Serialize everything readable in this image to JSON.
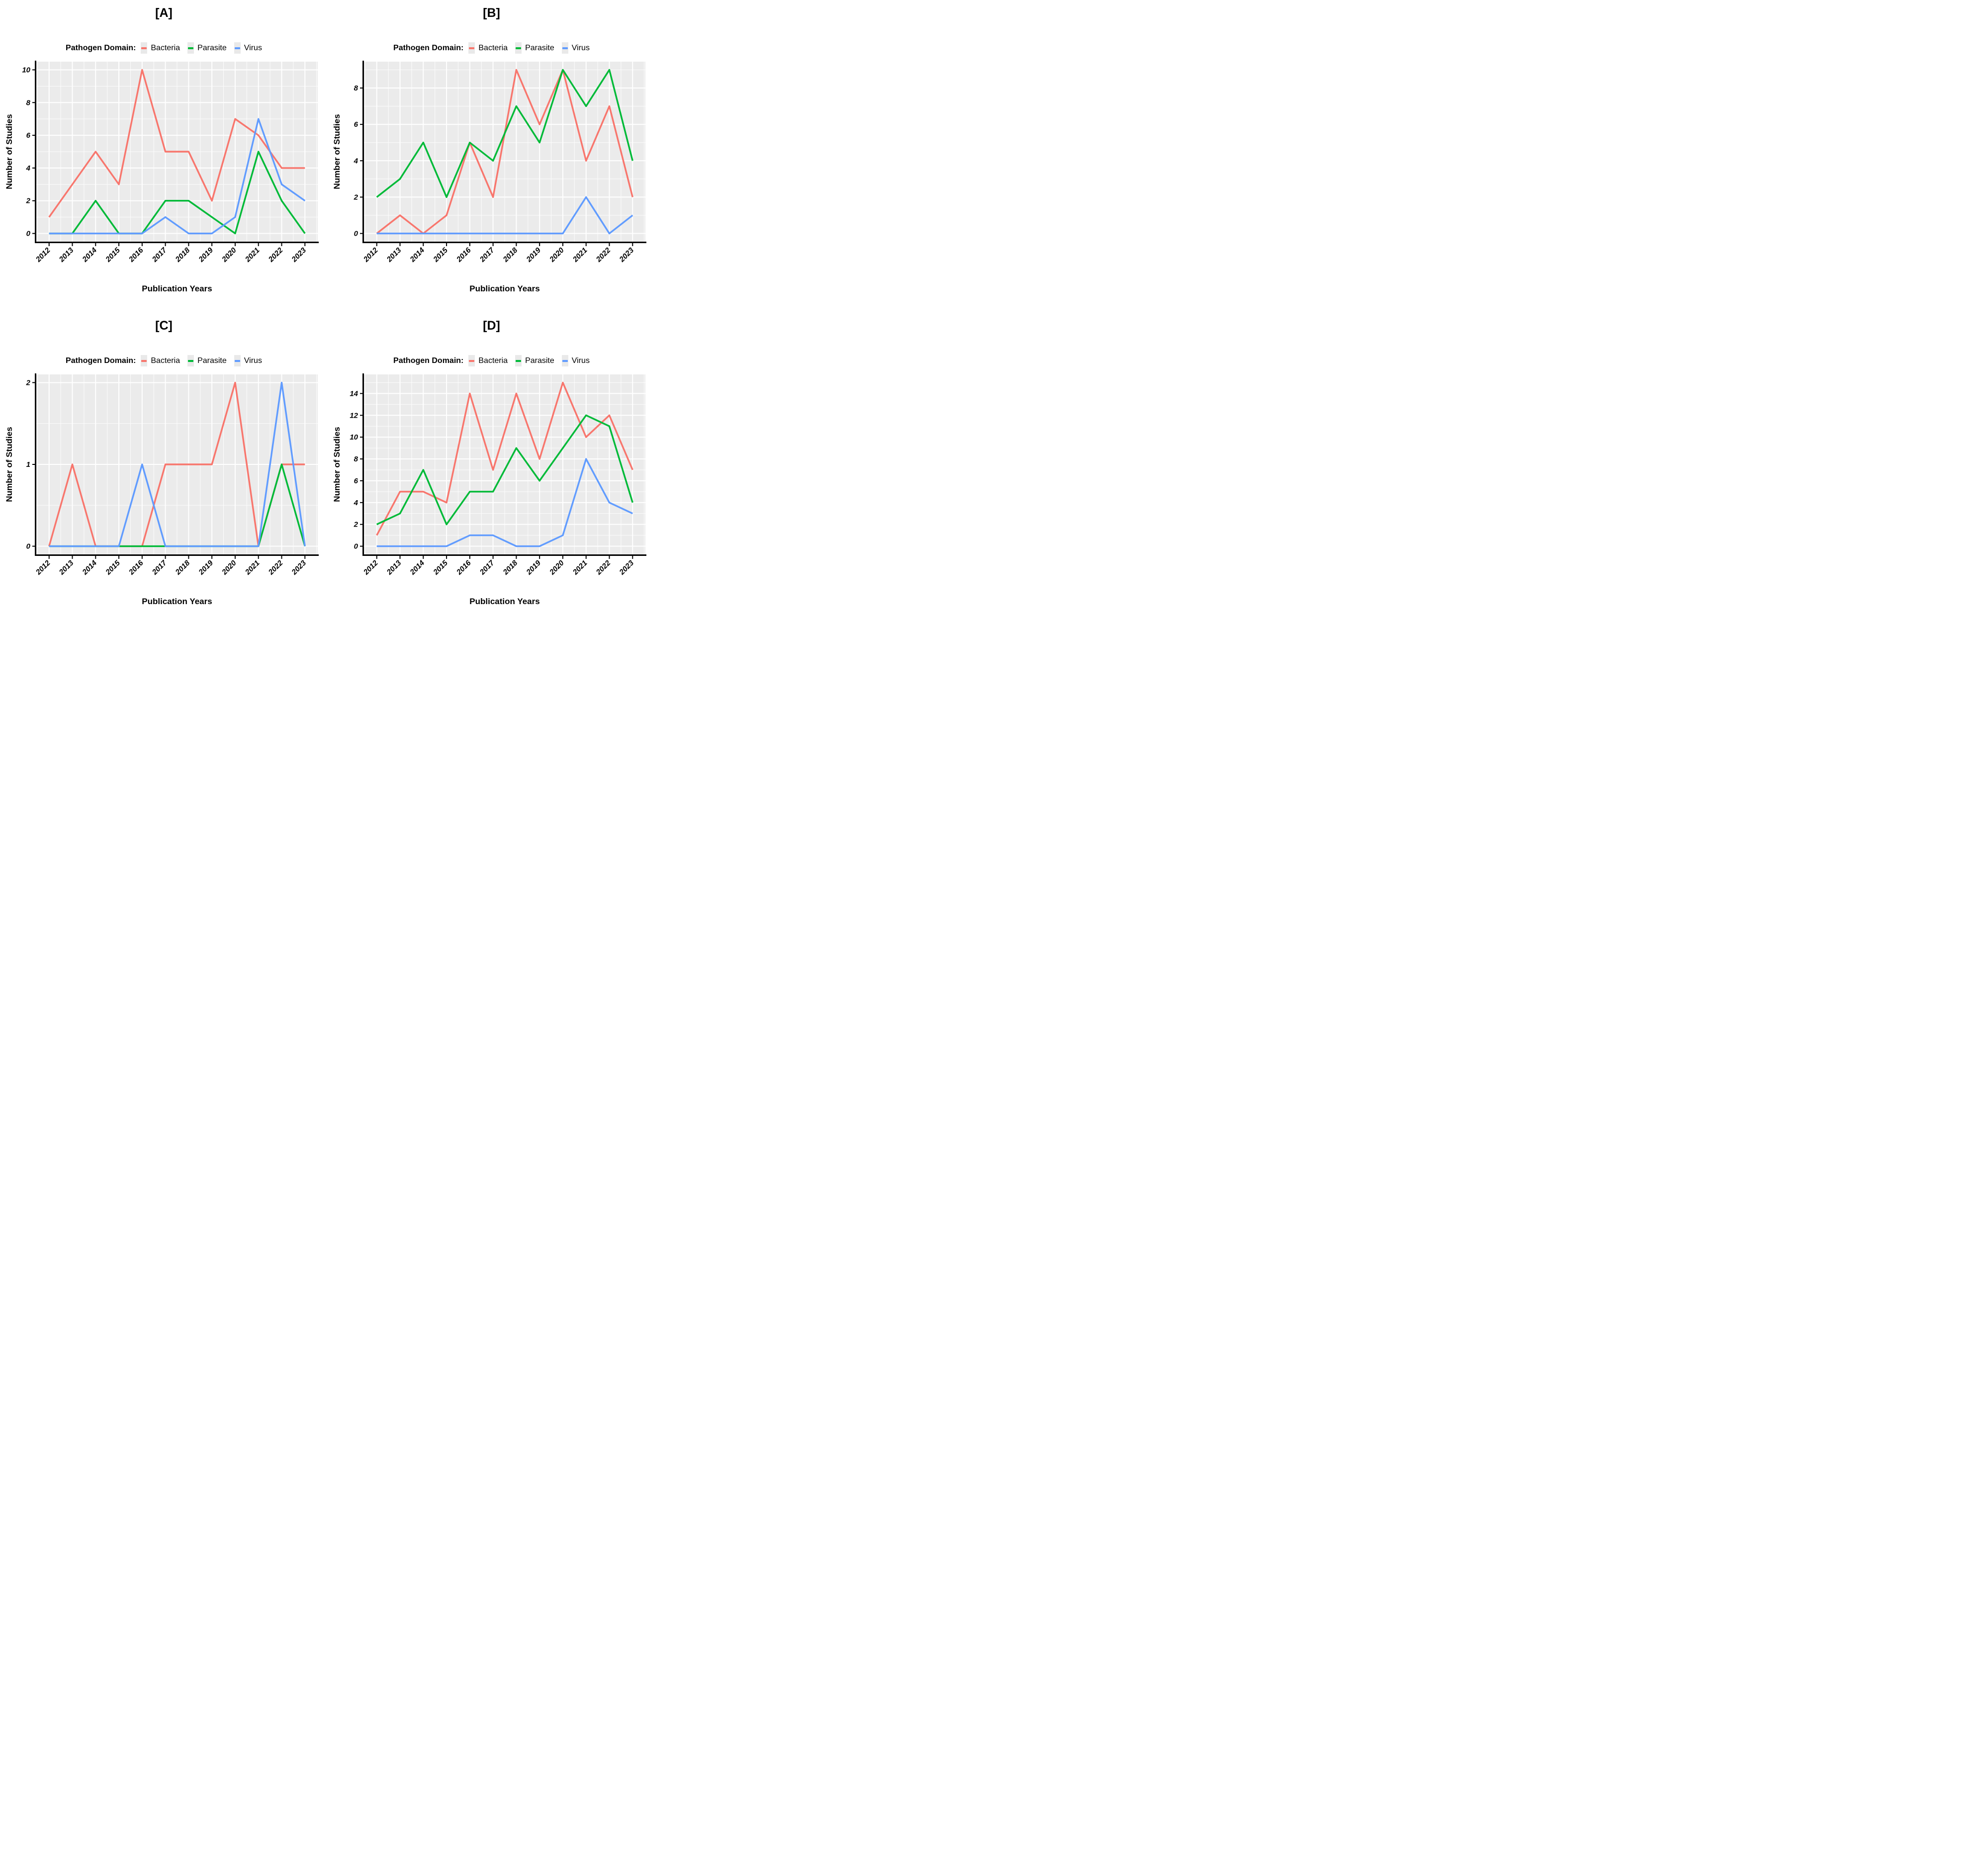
{
  "shared": {
    "legend_title": "Pathogen Domain:",
    "xlabel": "Publication Years",
    "ylabel": "Number of Studies",
    "years": [
      "2012",
      "2013",
      "2014",
      "2015",
      "2016",
      "2017",
      "2018",
      "2019",
      "2020",
      "2021",
      "2022",
      "2023"
    ],
    "colors": {
      "Bacteria": "#F8766D",
      "Parasite": "#00BA38",
      "Virus": "#619CFF"
    },
    "panel_bg": "#EBEBEB",
    "gridline_color": "#FFFFFF",
    "axis_color": "#000000",
    "legend_key_bg": "#E9E9E9",
    "legend_position": "top",
    "grid": "on"
  },
  "chart_data": [
    {
      "panel_label": "[A]",
      "type": "line",
      "title": "[A]",
      "xlabel": "Publication Years",
      "ylabel": "Number of Studies",
      "categories": [
        "2012",
        "2013",
        "2014",
        "2015",
        "2016",
        "2017",
        "2018",
        "2019",
        "2020",
        "2021",
        "2022",
        "2023"
      ],
      "yticks": [
        0,
        2,
        4,
        6,
        8,
        10
      ],
      "ylim": [
        -0.5,
        10.5
      ],
      "series": [
        {
          "name": "Bacteria",
          "color": "#F8766D",
          "values": [
            1,
            3,
            5,
            3,
            10,
            5,
            5,
            2,
            7,
            6,
            4,
            4
          ]
        },
        {
          "name": "Parasite",
          "color": "#00BA38",
          "values": [
            0,
            0,
            2,
            0,
            0,
            2,
            2,
            1,
            0,
            5,
            2,
            0
          ]
        },
        {
          "name": "Virus",
          "color": "#619CFF",
          "values": [
            0,
            0,
            0,
            0,
            0,
            1,
            0,
            0,
            1,
            7,
            3,
            2
          ]
        }
      ]
    },
    {
      "panel_label": "[B]",
      "type": "line",
      "title": "[B]",
      "xlabel": "Publication Years",
      "ylabel": "Number of Studies",
      "categories": [
        "2012",
        "2013",
        "2014",
        "2015",
        "2016",
        "2017",
        "2018",
        "2019",
        "2020",
        "2021",
        "2022",
        "2023"
      ],
      "yticks": [
        0,
        2,
        4,
        6,
        8
      ],
      "ylim": [
        -0.45,
        9.45
      ],
      "series": [
        {
          "name": "Bacteria",
          "color": "#F8766D",
          "values": [
            0,
            1,
            0,
            1,
            5,
            2,
            9,
            6,
            9,
            4,
            7,
            2
          ]
        },
        {
          "name": "Parasite",
          "color": "#00BA38",
          "values": [
            2,
            3,
            5,
            2,
            5,
            4,
            7,
            5,
            9,
            7,
            9,
            4
          ]
        },
        {
          "name": "Virus",
          "color": "#619CFF",
          "values": [
            0,
            0,
            0,
            0,
            0,
            0,
            0,
            0,
            0,
            2,
            0,
            1
          ]
        }
      ]
    },
    {
      "panel_label": "[C]",
      "type": "line",
      "title": "[C]",
      "xlabel": "Publication Years",
      "ylabel": "Number of Studies",
      "categories": [
        "2012",
        "2013",
        "2014",
        "2015",
        "2016",
        "2017",
        "2018",
        "2019",
        "2020",
        "2021",
        "2022",
        "2023"
      ],
      "yticks": [
        0,
        1,
        2
      ],
      "ylim": [
        -0.1,
        2.1
      ],
      "series": [
        {
          "name": "Bacteria",
          "color": "#F8766D",
          "values": [
            0,
            1,
            0,
            0,
            0,
            1,
            1,
            1,
            2,
            0,
            1,
            1
          ]
        },
        {
          "name": "Parasite",
          "color": "#00BA38",
          "values": [
            0,
            0,
            0,
            0,
            0,
            0,
            0,
            0,
            0,
            0,
            1,
            0
          ]
        },
        {
          "name": "Virus",
          "color": "#619CFF",
          "values": [
            0,
            0,
            0,
            0,
            1,
            0,
            0,
            0,
            0,
            0,
            2,
            0
          ]
        }
      ]
    },
    {
      "panel_label": "[D]",
      "type": "line",
      "title": "[D]",
      "xlabel": "Publication Years",
      "ylabel": "Number of Studies",
      "categories": [
        "2012",
        "2013",
        "2014",
        "2015",
        "2016",
        "2017",
        "2018",
        "2019",
        "2020",
        "2021",
        "2022",
        "2023"
      ],
      "yticks": [
        0,
        2,
        4,
        6,
        8,
        10,
        12,
        14
      ],
      "ylim": [
        -0.75,
        15.75
      ],
      "series": [
        {
          "name": "Bacteria",
          "color": "#F8766D",
          "values": [
            1,
            5,
            5,
            4,
            14,
            7,
            14,
            8,
            15,
            10,
            12,
            7
          ]
        },
        {
          "name": "Parasite",
          "color": "#00BA38",
          "values": [
            2,
            3,
            7,
            2,
            5,
            5,
            9,
            6,
            9,
            12,
            11,
            4
          ]
        },
        {
          "name": "Virus",
          "color": "#619CFF",
          "values": [
            0,
            0,
            0,
            0,
            1,
            1,
            0,
            0,
            1,
            8,
            4,
            3
          ]
        }
      ]
    }
  ]
}
